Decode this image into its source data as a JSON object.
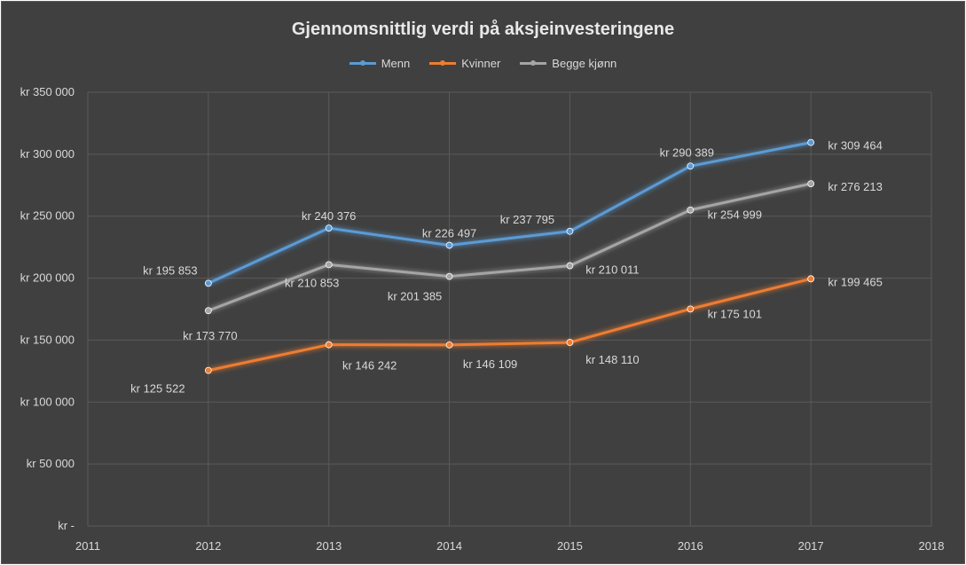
{
  "chart_data": {
    "type": "line",
    "title": "Gjennomsnittlig verdi på aksjeinvesteringene",
    "xlabel": "",
    "ylabel": "",
    "x": [
      2012,
      2013,
      2014,
      2015,
      2016,
      2017
    ],
    "xlim": [
      2011,
      2018
    ],
    "xticks": [
      "2011",
      "2012",
      "2013",
      "2014",
      "2015",
      "2016",
      "2017",
      "2018"
    ],
    "ylim": [
      0,
      350000
    ],
    "yticks": [
      "kr -",
      "kr 50 000",
      "kr 100 000",
      "kr 150 000",
      "kr 200 000",
      "kr 250 000",
      "kr 300 000",
      "kr 350 000"
    ],
    "grid": true,
    "legend_position": "top",
    "series": [
      {
        "name": "Menn",
        "color": "#5b9bd5",
        "values": [
          195853,
          240376,
          226497,
          237795,
          290389,
          309464
        ],
        "labels": [
          "kr 195 853",
          "kr 240 376",
          "kr 226 497",
          "kr 237 795",
          "kr 290 389",
          "kr 309 464"
        ]
      },
      {
        "name": "Kvinner",
        "color": "#ed7d31",
        "values": [
          125522,
          146242,
          146109,
          148110,
          175101,
          199465
        ],
        "labels": [
          "kr 125 522",
          "kr 146 242",
          "kr 146 109",
          "kr 148 110",
          "kr 175 101",
          "kr 199 465"
        ]
      },
      {
        "name": "Begge kjønn",
        "color": "#a5a5a5",
        "values": [
          173770,
          210853,
          201385,
          210011,
          254999,
          276213
        ],
        "labels": [
          "kr 173 770",
          "kr 210 853",
          "kr 201 385",
          "kr 210 011",
          "kr 254 999",
          "kr 276 213"
        ]
      }
    ]
  }
}
